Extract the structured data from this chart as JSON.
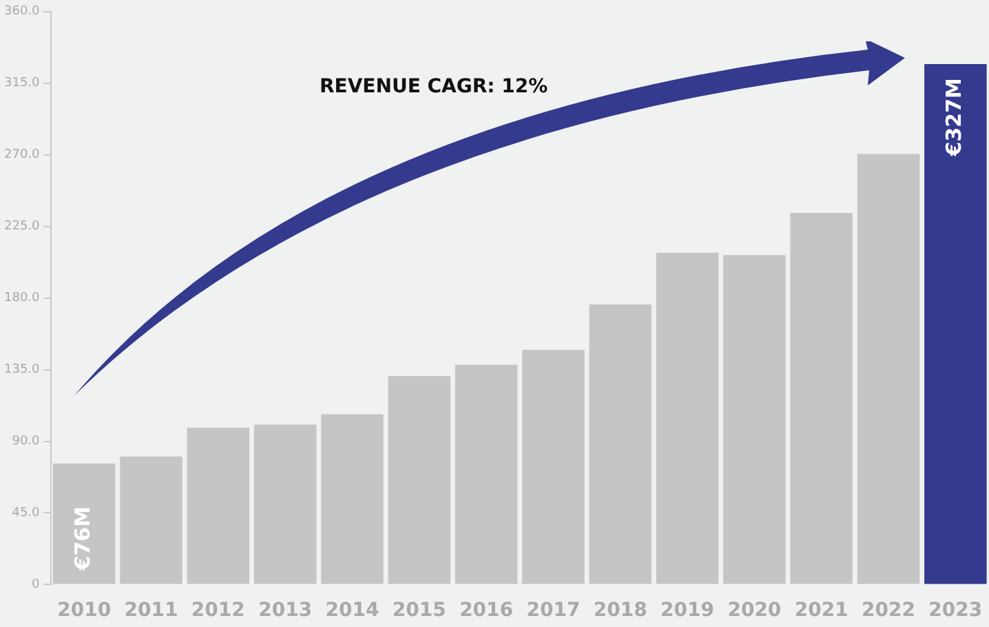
{
  "chart_data": {
    "type": "bar",
    "categories": [
      "2010",
      "2011",
      "2012",
      "2013",
      "2014",
      "2015",
      "2016",
      "2017",
      "2018",
      "2019",
      "2020",
      "2021",
      "2022",
      "2023"
    ],
    "values": [
      76,
      80.5,
      98.5,
      100.5,
      107,
      131,
      138,
      147.5,
      176,
      208.5,
      207,
      233.5,
      270.5,
      327
    ],
    "colors": [
      "#c4c5c4",
      "#c4c5c4",
      "#c4c5c4",
      "#c4c5c4",
      "#c4c5c4",
      "#c4c5c4",
      "#c4c5c4",
      "#c4c5c4",
      "#c4c5c4",
      "#c4c5c4",
      "#c4c5c4",
      "#c4c5c4",
      "#c4c5c4",
      "#343a8e"
    ],
    "value_labels": [
      "€76M",
      null,
      null,
      null,
      null,
      null,
      null,
      null,
      null,
      null,
      null,
      null,
      null,
      "€327M"
    ],
    "ylim": [
      0,
      360
    ],
    "yticks": [
      0,
      {
        "value": 45,
        "label": "45.0"
      },
      {
        "value": 90,
        "label": "90.0"
      },
      {
        "value": 135,
        "label": "135.0"
      },
      {
        "value": 180,
        "label": "180.0"
      },
      {
        "value": 225,
        "label": "225.0"
      },
      {
        "value": 270,
        "label": "270.0"
      },
      {
        "value": 315,
        "label": "315.0"
      },
      {
        "value": 360,
        "label": "360.0"
      }
    ],
    "annotations": [
      "REVENUE CAGR: 12%"
    ],
    "grid": false,
    "legend": false
  }
}
